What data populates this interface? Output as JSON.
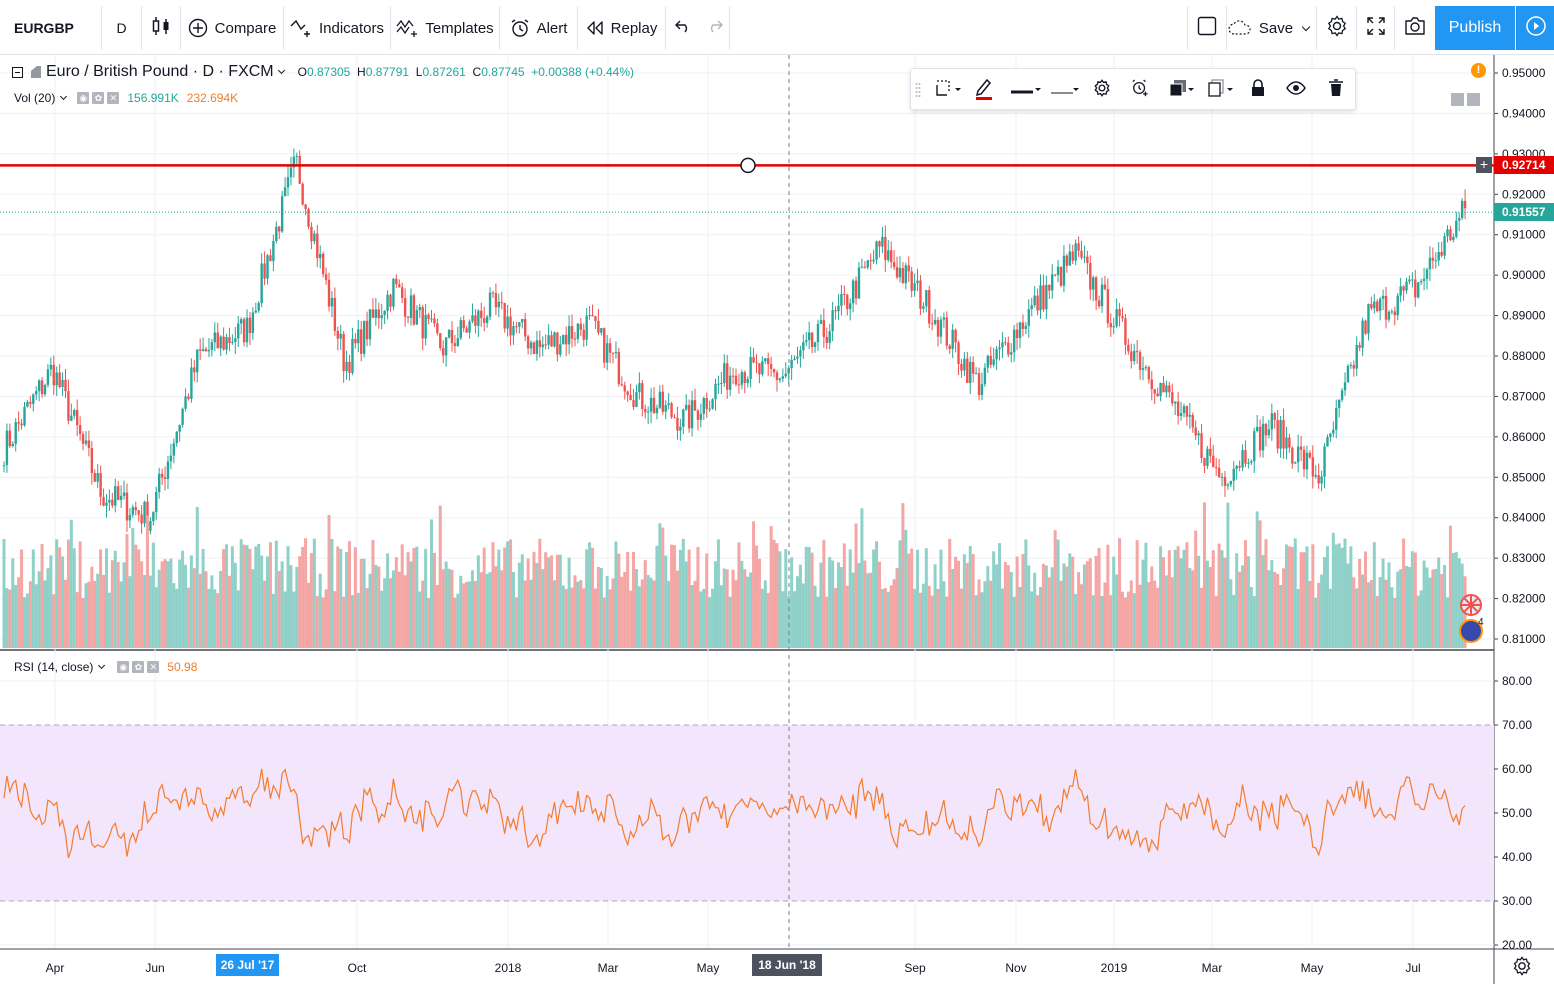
{
  "toolbar": {
    "symbol": "EURGBP",
    "interval": "D",
    "compare": "Compare",
    "indicators": "Indicators",
    "templates": "Templates",
    "alert": "Alert",
    "replay": "Replay",
    "save": "Save",
    "publish": "Publish"
  },
  "legend": {
    "title": "Euro / British Pound · D · FXCM",
    "open_label": "O",
    "open": "0.87305",
    "high_label": "H",
    "high": "0.87791",
    "low_label": "L",
    "low": "0.87261",
    "close_label": "C",
    "close": "0.87745",
    "change": "+0.00388 (+0.44%)"
  },
  "volume_legend": {
    "label": "Vol (20)",
    "value1": "156.991K",
    "value2": "232.694K"
  },
  "rsi_legend": {
    "label": "RSI (14, close)",
    "value": "50.98"
  },
  "price_axis": [
    "0.95000",
    "0.94000",
    "0.93000",
    "0.92000",
    "0.91000",
    "0.90000",
    "0.89000",
    "0.88000",
    "0.87000",
    "0.86000",
    "0.85000",
    "0.84000",
    "0.83000",
    "0.82000",
    "0.81000"
  ],
  "rsi_axis": [
    "80.00",
    "70.00",
    "60.00",
    "50.00",
    "40.00",
    "30.00",
    "20.00"
  ],
  "time_axis": [
    "Apr",
    "Jun",
    "Oct",
    "2018",
    "Mar",
    "May",
    "Sep",
    "Nov",
    "2019",
    "Mar",
    "May",
    "Jul"
  ],
  "tags": {
    "horizontal_line": "0.92714",
    "last_price": "0.91557",
    "crosshair_time": "18 Jun '18",
    "highlight_time": "26 Jul '17"
  },
  "colors": {
    "up": "#26a69a",
    "down": "#ef5350",
    "horizontal_line": "#e50000",
    "rsi_line": "#f57c2c",
    "rsi_band": "#f3e5fb",
    "accent": "#2196f3"
  },
  "chart_data": {
    "type": "candlestick",
    "symbol": "EURGBP",
    "interval": "D",
    "ylim": [
      0.805,
      0.955
    ],
    "price_path_keypoints": [
      [
        "2017-03",
        0.857
      ],
      [
        "2017-03",
        0.877
      ],
      [
        "2017-04",
        0.846
      ],
      [
        "2017-05",
        0.84
      ],
      [
        "2017-06",
        0.88
      ],
      [
        "2017-07",
        0.887
      ],
      [
        "2017-08",
        0.928
      ],
      [
        "2017-09",
        0.878
      ],
      [
        "2017-10",
        0.897
      ],
      [
        "2017-11",
        0.882
      ],
      [
        "2017-12",
        0.892
      ],
      [
        "2018-01",
        0.882
      ],
      [
        "2018-02",
        0.888
      ],
      [
        "2018-03",
        0.87
      ],
      [
        "2018-04",
        0.864
      ],
      [
        "2018-05",
        0.877
      ],
      [
        "2018-06",
        0.875
      ],
      [
        "2018-07",
        0.888
      ],
      [
        "2018-08",
        0.907
      ],
      [
        "2018-09",
        0.892
      ],
      [
        "2018-10",
        0.873
      ],
      [
        "2018-11",
        0.89
      ],
      [
        "2018-12",
        0.905
      ],
      [
        "2019-01",
        0.885
      ],
      [
        "2019-02",
        0.868
      ],
      [
        "2019-03",
        0.85
      ],
      [
        "2019-04",
        0.863
      ],
      [
        "2019-05",
        0.85
      ],
      [
        "2019-06",
        0.89
      ],
      [
        "2019-07",
        0.897
      ],
      [
        "2019-08",
        0.916
      ]
    ],
    "rsi": {
      "period": 14,
      "overbought": 70,
      "oversold": 30,
      "ylim": [
        20,
        85
      ],
      "last": 50.98
    },
    "horizontal_line": 0.92714,
    "last_price": 0.91557
  }
}
